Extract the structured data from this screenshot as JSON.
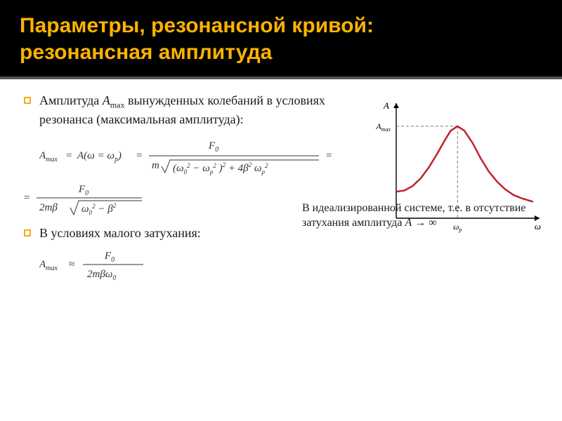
{
  "header": {
    "title_line1": "Параметры, резонансной кривой:",
    "title_line2": "резонансная амплитуда",
    "title_color": "#ffb300",
    "bg_color": "#000000"
  },
  "bullets": [
    {
      "text_prefix": "Амплитуда ",
      "var": "A",
      "sub": "max",
      "text_suffix": " вынужденных колебаний в условиях резонанса (максимальная амплитуда):"
    },
    {
      "text_prefix": "В условиях малого затухания:",
      "var": "",
      "sub": "",
      "text_suffix": ""
    }
  ],
  "formulas": {
    "f1": {
      "lhs": "A",
      "lhs_sub": "max",
      "mid": "A(ω = ω",
      "mid_sub": "p",
      "mid_close": ")",
      "num": "F",
      "num_sub": "0",
      "den_m": "m",
      "den_root_a": "(ω",
      "den_root_a_sub": "0",
      "den_root_a_sup": "2",
      "den_root_b": " − ω",
      "den_root_b_sub": "p",
      "den_root_b_sup": "2",
      "den_root_c": ")",
      "den_root_c_sup": "2",
      "den_plus": " + 4β",
      "den_plus_sup": "2",
      "den_om": "ω",
      "den_om_sub": "p",
      "den_om_sup": "2",
      "trail_eq": "="
    },
    "f2": {
      "lhs_eq": "=",
      "num": "F",
      "num_sub": "0",
      "den_a": "2mβ",
      "den_root": "ω",
      "den_root_sub": "0",
      "den_root_sup": "2",
      "den_minus": " − β",
      "den_minus_sup": "2"
    },
    "f3": {
      "lhs": "A",
      "lhs_sub": "max",
      "approx": "≈",
      "num": "F",
      "num_sub": "0",
      "den": "2mβω",
      "den_sub": "0"
    }
  },
  "chart": {
    "type": "line",
    "y_label": "A",
    "y_max_label": "A",
    "y_max_sub": "max",
    "x_tick_label": "ω",
    "x_tick_sub": "p",
    "x_label": "ω",
    "curve_color": "#c1222a",
    "curve_width": 2.5,
    "axis_color": "#000000",
    "dash_color": "#777777",
    "background_color": "#ffffff",
    "xlim": [
      0,
      10
    ],
    "ylim": [
      0,
      10
    ],
    "peak_x": 4.5,
    "peak_y": 8.3,
    "points": [
      [
        0.0,
        2.4
      ],
      [
        0.6,
        2.5
      ],
      [
        1.2,
        2.9
      ],
      [
        1.8,
        3.6
      ],
      [
        2.4,
        4.6
      ],
      [
        3.0,
        5.8
      ],
      [
        3.6,
        7.1
      ],
      [
        4.0,
        7.9
      ],
      [
        4.5,
        8.3
      ],
      [
        5.0,
        7.9
      ],
      [
        5.6,
        6.8
      ],
      [
        6.2,
        5.4
      ],
      [
        6.8,
        4.2
      ],
      [
        7.4,
        3.3
      ],
      [
        8.0,
        2.6
      ],
      [
        8.6,
        2.1
      ],
      [
        9.2,
        1.8
      ],
      [
        10.0,
        1.5
      ]
    ]
  },
  "footnote": {
    "text_a": "В идеализированной системе, т.е. в отсутствие затухания амплитуда ",
    "var": "A",
    "text_b": " → ∞"
  }
}
